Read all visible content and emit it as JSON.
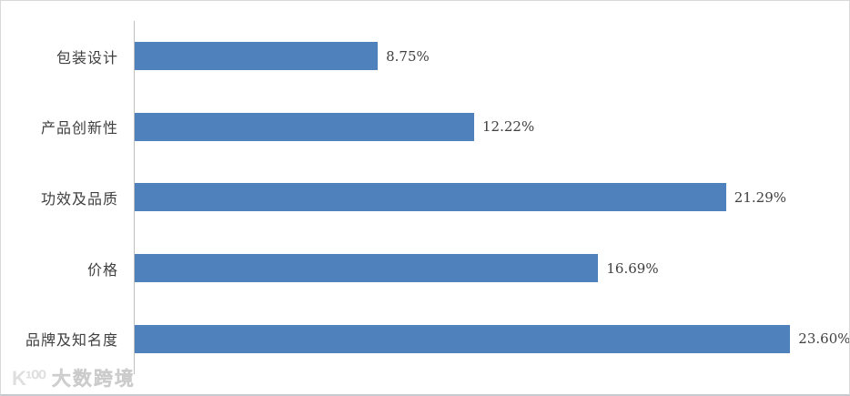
{
  "chart_data": {
    "type": "bar",
    "orientation": "horizontal",
    "title": "",
    "xlabel": "",
    "ylabel": "",
    "categories": [
      "包装设计",
      "产品创新性",
      "功效及品质",
      "价格",
      "品牌及知名度"
    ],
    "values": [
      8.75,
      12.22,
      21.29,
      16.69,
      23.6
    ],
    "value_labels": [
      "8.75%",
      "12.22%",
      "21.29%",
      "16.69%",
      "23.60%"
    ],
    "xlim": [
      0,
      25
    ],
    "grid": false,
    "legend": false,
    "bar_color": "#4f81bd",
    "axis_color": "#bfbfbf",
    "label_color": "#3f3f3f"
  },
  "watermark": {
    "logo": "K¹⁰⁰",
    "text": "大数跨境"
  }
}
